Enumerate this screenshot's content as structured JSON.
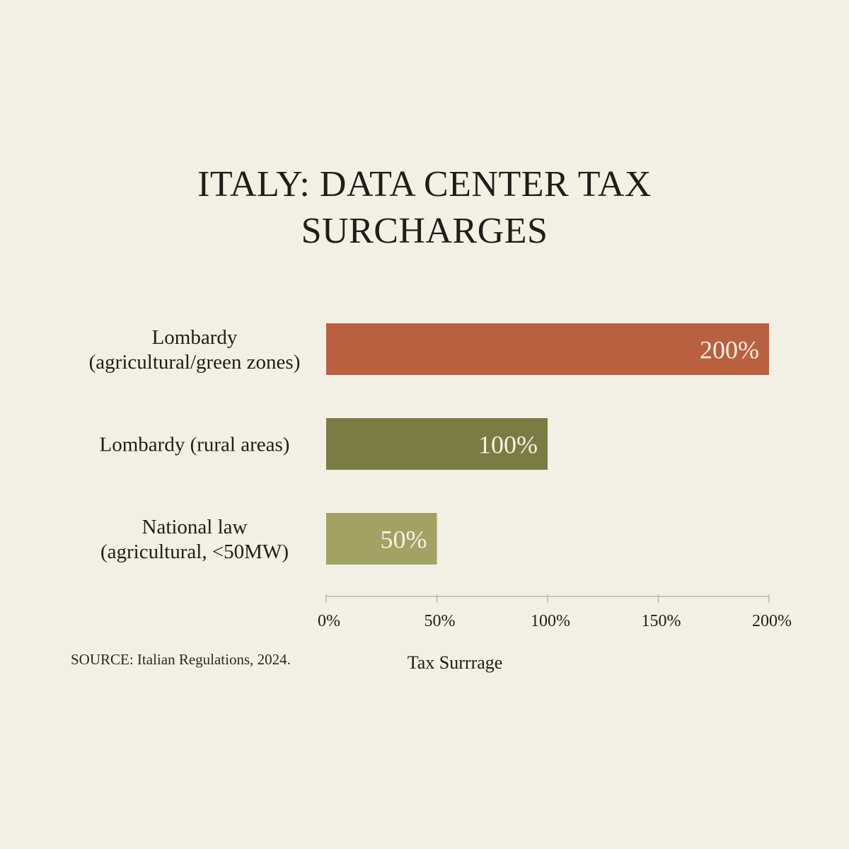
{
  "chart_data": {
    "type": "bar",
    "orientation": "horizontal",
    "title_lines": [
      "ITALY: DATA CENTER TAX",
      "SURCHARGES"
    ],
    "categories": [
      [
        "Lombardy",
        "(agricultural/green zones)"
      ],
      [
        "Lombardy (rural areas)"
      ],
      [
        "National law",
        "(agricultural, <50MW)"
      ]
    ],
    "values": [
      200,
      100,
      50
    ],
    "value_labels": [
      "200%",
      "100%",
      "50%"
    ],
    "bar_colors": [
      "#b96040",
      "#7b7b44",
      "#a2a263"
    ],
    "x_ticks": [
      0,
      50,
      100,
      150,
      200
    ],
    "x_tick_labels": [
      "0%",
      "50%",
      "100%",
      "150%",
      "200%"
    ],
    "xlabel": "Tax Surrrage",
    "xlim": [
      0,
      200
    ],
    "grid": false,
    "source": "SOURCE: Italian Regulations, 2024."
  }
}
